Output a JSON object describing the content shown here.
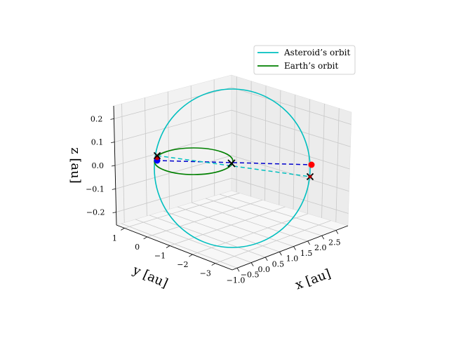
{
  "chart_data": {
    "type": "line",
    "projection": "3d",
    "title": "",
    "xlabel": "x [au]",
    "ylabel": "y [au]",
    "zlabel": "z [au]",
    "x_ticks": [
      "−1.0",
      "−0.5",
      "0.0",
      "0.5",
      "1.0",
      "1.5",
      "2.0",
      "2.5"
    ],
    "y_ticks": [
      "1",
      "0",
      "−1",
      "−2",
      "−3"
    ],
    "z_ticks": [
      "0.2",
      "0.1",
      "0.0",
      "−0.1",
      "−0.2"
    ],
    "grid": true,
    "legend_position": "top-right",
    "series": [
      {
        "name": "Asteroid’s orbit",
        "color": "#00bfbf",
        "style": "solid"
      },
      {
        "name": "Earth’s orbit",
        "color": "#008000",
        "style": "solid"
      }
    ],
    "markers": [
      {
        "kind": "sun",
        "x": 0.0,
        "y": 0.0,
        "z": 0.0,
        "symbol": "x",
        "color": "#000000"
      },
      {
        "kind": "asteroid-position",
        "symbol": "circle",
        "color": "#ff0000"
      },
      {
        "kind": "earth-position",
        "symbol": "circle",
        "color": "#0000ff"
      }
    ],
    "colors": {
      "asteroid": "#00bfbf",
      "earth": "#008000",
      "blue_dash": "#0000cc",
      "cyan_dash": "#00bfbf"
    }
  }
}
